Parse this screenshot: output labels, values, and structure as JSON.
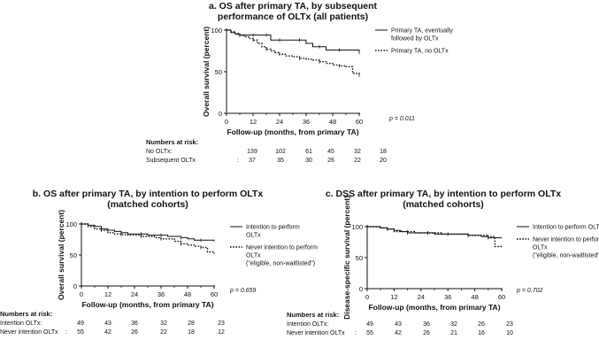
{
  "chart_data": [
    {
      "type": "line",
      "id": "a",
      "title_lines": [
        "a. OS after primary TA, by subsequent",
        "performance of OLTx (all patients)"
      ],
      "xlabel": "Follow-up (months, from primary TA)",
      "ylabel": "Overall survival (percent)",
      "xlim": [
        0,
        60
      ],
      "ylim": [
        0,
        100
      ],
      "xticks": [
        "0",
        "12",
        "24",
        "36",
        "48",
        "60"
      ],
      "yticks": [
        "0",
        "50",
        "100"
      ],
      "p_value": "p = 0.011",
      "series": [
        {
          "name": "Primary TA, eventually followed by OLTx",
          "legend_lines": [
            "Primary TA, eventually",
            "followed by OLTx"
          ],
          "style": "solid",
          "x": [
            0,
            2,
            4,
            6,
            8,
            10,
            12,
            14,
            16,
            18,
            20,
            22,
            24,
            27,
            30,
            33,
            36,
            39,
            42,
            45,
            48,
            51,
            54,
            57,
            60
          ],
          "y": [
            100,
            97,
            95,
            94,
            94,
            94,
            94,
            94,
            94,
            94,
            88,
            88,
            88,
            88,
            88,
            88,
            84,
            80,
            80,
            76,
            76,
            76,
            76,
            76,
            73
          ]
        },
        {
          "name": "Primary TA, no OLTx",
          "legend_lines": [
            "Primary TA, no OLTx"
          ],
          "style": "dotted",
          "x": [
            0,
            2,
            4,
            6,
            8,
            10,
            12,
            14,
            16,
            18,
            20,
            22,
            24,
            27,
            30,
            33,
            36,
            39,
            42,
            45,
            48,
            51,
            54,
            57,
            60
          ],
          "y": [
            100,
            98,
            96,
            94,
            92,
            90,
            88,
            84,
            80,
            77,
            75,
            73,
            71,
            69,
            68,
            66,
            65,
            64,
            62,
            60,
            58,
            57,
            56,
            48,
            46
          ]
        }
      ],
      "risk_table": {
        "header": "Numbers at risk:",
        "rows": [
          {
            "label": "No OLTx:",
            "sep": "",
            "values": [
              "139",
              "102",
              "61",
              "45",
              "32",
              "18"
            ]
          },
          {
            "label": "Subsequent  OLTx",
            "sep": ":",
            "values": [
              "37",
              "35",
              "30",
              "26",
              "22",
              "20"
            ]
          }
        ]
      }
    },
    {
      "type": "line",
      "id": "b",
      "title_lines": [
        "b. OS after primary TA, by intention to perform OLTx",
        "(matched cohorts)"
      ],
      "xlabel": "Follow-up (months, from primary TA)",
      "ylabel": "Overall survival (percent)",
      "xlim": [
        0,
        60
      ],
      "ylim": [
        0,
        100
      ],
      "xticks": [
        "0",
        "12",
        "24",
        "36",
        "48",
        "60"
      ],
      "yticks": [
        "0",
        "50",
        "100"
      ],
      "p_value": "p = 0.659",
      "series": [
        {
          "name": "Intention to perform OLTx",
          "legend_lines": [
            "Intention to perform",
            "OLTx"
          ],
          "style": "solid",
          "x": [
            0,
            3,
            6,
            9,
            12,
            15,
            18,
            21,
            24,
            27,
            30,
            33,
            36,
            39,
            42,
            45,
            48,
            51,
            54,
            57,
            60
          ],
          "y": [
            100,
            98,
            96,
            92,
            90,
            88,
            86,
            84,
            84,
            84,
            82,
            82,
            82,
            80,
            80,
            78,
            76,
            74,
            74,
            74,
            72
          ]
        },
        {
          "name": "Never intention to perform OLTx (\"eligible, non-waitlisted\")",
          "legend_lines": [
            "Never intention to perform",
            "OLTx",
            "(\"eligible, non-waitlisted\")"
          ],
          "style": "dotted",
          "x": [
            0,
            3,
            6,
            9,
            12,
            15,
            18,
            21,
            24,
            27,
            30,
            33,
            36,
            39,
            42,
            45,
            48,
            51,
            54,
            57,
            60
          ],
          "y": [
            100,
            96,
            92,
            90,
            86,
            84,
            83,
            82,
            82,
            80,
            80,
            78,
            76,
            76,
            72,
            68,
            66,
            64,
            62,
            55,
            52
          ]
        }
      ],
      "risk_table": {
        "header": "Numbers at risk:",
        "rows": [
          {
            "label": "Intention OLTx:",
            "sep": "",
            "values": [
              "49",
              "43",
              "36",
              "32",
              "28",
              "23"
            ]
          },
          {
            "label": "Never intention OLTx",
            "sep": ":",
            "values": [
              "55",
              "42",
              "26",
              "22",
              "18",
              "12"
            ]
          }
        ]
      }
    },
    {
      "type": "line",
      "id": "c",
      "title_lines": [
        "c. DSS after primary TA, by intention to perform OLTx",
        "(matched cohorts)"
      ],
      "xlabel": "Follow-up (months, from primary TA)",
      "ylabel": "Disease-specific survival (percent)",
      "xlim": [
        0,
        60
      ],
      "ylim": [
        0,
        100
      ],
      "xticks": [
        "0",
        "12",
        "24",
        "36",
        "48",
        "60"
      ],
      "yticks": [
        "0",
        "50",
        "100"
      ],
      "p_value": "p = 0.702",
      "series": [
        {
          "name": "Intention to perform OLTx",
          "legend_lines": [
            "Intention to perform OLTx"
          ],
          "style": "solid",
          "x": [
            0,
            3,
            6,
            9,
            12,
            15,
            18,
            21,
            24,
            27,
            30,
            33,
            36,
            39,
            42,
            45,
            48,
            51,
            54,
            57,
            60
          ],
          "y": [
            100,
            100,
            98,
            96,
            94,
            92,
            90,
            90,
            90,
            90,
            88,
            88,
            88,
            88,
            88,
            86,
            86,
            84,
            82,
            82,
            82
          ]
        },
        {
          "name": "Never intention to perform OLTx (\"eligible, non-waitlisted\")",
          "legend_lines": [
            "Never intention to perform",
            "OLTx",
            "(\"eligible, non-waitlisted\")"
          ],
          "style": "dotted",
          "x": [
            0,
            3,
            6,
            9,
            12,
            15,
            18,
            21,
            24,
            27,
            30,
            33,
            36,
            39,
            42,
            45,
            48,
            51,
            54,
            57,
            60
          ],
          "y": [
            100,
            100,
            98,
            96,
            92,
            92,
            92,
            90,
            90,
            90,
            90,
            88,
            88,
            88,
            88,
            86,
            86,
            86,
            84,
            68,
            68
          ]
        }
      ],
      "risk_table": {
        "header": "Numbers at risk:",
        "rows": [
          {
            "label": "Intention OLTx:",
            "sep": "",
            "values": [
              "49",
              "43",
              "36",
              "32",
              "26",
              "23"
            ]
          },
          {
            "label": "Never intention OLTx",
            "sep": ":",
            "values": [
              "55",
              "42",
              "26",
              "21",
              "16",
              "10"
            ]
          }
        ]
      }
    }
  ]
}
